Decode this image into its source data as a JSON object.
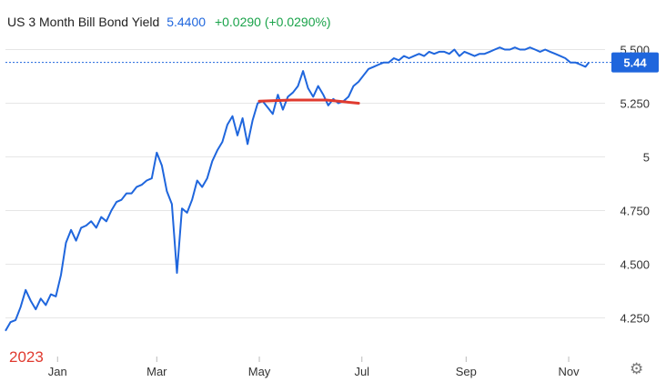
{
  "header": {
    "title": "US 3 Month Bill Bond Yield",
    "value": "5.4400",
    "change": "+0.0290 (+0.0290%)"
  },
  "year_label": "2023",
  "current_label": "5.44",
  "icons": {
    "settings": "gear-icon"
  },
  "colors": {
    "line": "#1f66dd",
    "trend": "#e03a2f",
    "up": "#1aa34a",
    "label_bg": "#1f66dd"
  },
  "chart_data": {
    "type": "line",
    "title": "US 3 Month Bill Bond Yield",
    "xlabel": "",
    "ylabel": "",
    "x_ticks": [
      "Jan",
      "Mar",
      "May",
      "Jul",
      "Sep",
      "Nov"
    ],
    "y_ticks": [
      4.25,
      4.5,
      4.75,
      5,
      5.25,
      5.5
    ],
    "y_tick_labels": [
      "4.250",
      "4.500",
      "4.750",
      "5",
      "5.250",
      "5.500"
    ],
    "ylim": [
      4.07,
      5.57
    ],
    "grid": true,
    "current_value": 5.44,
    "series": [
      {
        "x": [
          "2022-12-01",
          "2022-12-04",
          "2022-12-07",
          "2022-12-10",
          "2022-12-13",
          "2022-12-16",
          "2022-12-19",
          "2022-12-22",
          "2022-12-25",
          "2022-12-28",
          "2022-12-31",
          "2023-01-03",
          "2023-01-06",
          "2023-01-09",
          "2023-01-12",
          "2023-01-15",
          "2023-01-18",
          "2023-01-21",
          "2023-01-24",
          "2023-01-27",
          "2023-01-30",
          "2023-02-02",
          "2023-02-05",
          "2023-02-08",
          "2023-02-11",
          "2023-02-14",
          "2023-02-17",
          "2023-02-20",
          "2023-02-23",
          "2023-02-26",
          "2023-03-01",
          "2023-03-04",
          "2023-03-07",
          "2023-03-10",
          "2023-03-13",
          "2023-03-16",
          "2023-03-19",
          "2023-03-22",
          "2023-03-25",
          "2023-03-28",
          "2023-03-31",
          "2023-04-03",
          "2023-04-06",
          "2023-04-09",
          "2023-04-12",
          "2023-04-15",
          "2023-04-18",
          "2023-04-21",
          "2023-04-24",
          "2023-04-27",
          "2023-04-30",
          "2023-05-03",
          "2023-05-06",
          "2023-05-09",
          "2023-05-12",
          "2023-05-15",
          "2023-05-18",
          "2023-05-21",
          "2023-05-24",
          "2023-05-27",
          "2023-05-30",
          "2023-06-02",
          "2023-06-05",
          "2023-06-08",
          "2023-06-11",
          "2023-06-14",
          "2023-06-17",
          "2023-06-20",
          "2023-06-23",
          "2023-06-26",
          "2023-06-29",
          "2023-07-02",
          "2023-07-05",
          "2023-07-08",
          "2023-07-11",
          "2023-07-14",
          "2023-07-17",
          "2023-07-20",
          "2023-07-23",
          "2023-07-26",
          "2023-07-29",
          "2023-08-01",
          "2023-08-04",
          "2023-08-07",
          "2023-08-10",
          "2023-08-13",
          "2023-08-16",
          "2023-08-19",
          "2023-08-22",
          "2023-08-25",
          "2023-08-28",
          "2023-08-31",
          "2023-09-03",
          "2023-09-06",
          "2023-09-09",
          "2023-09-12",
          "2023-09-15",
          "2023-09-18",
          "2023-09-21",
          "2023-09-24",
          "2023-09-27",
          "2023-09-30",
          "2023-10-03",
          "2023-10-06",
          "2023-10-09",
          "2023-10-12",
          "2023-10-15",
          "2023-10-18",
          "2023-10-21",
          "2023-10-24",
          "2023-10-27",
          "2023-10-30",
          "2023-11-02",
          "2023-11-05",
          "2023-11-08",
          "2023-11-11",
          "2023-11-13"
        ],
        "y": [
          4.19,
          4.23,
          4.24,
          4.3,
          4.38,
          4.33,
          4.29,
          4.34,
          4.31,
          4.36,
          4.35,
          4.45,
          4.6,
          4.66,
          4.61,
          4.67,
          4.68,
          4.7,
          4.67,
          4.72,
          4.7,
          4.75,
          4.79,
          4.8,
          4.83,
          4.83,
          4.86,
          4.87,
          4.89,
          4.9,
          5.02,
          4.96,
          4.84,
          4.78,
          4.46,
          4.76,
          4.74,
          4.8,
          4.89,
          4.86,
          4.9,
          4.98,
          5.03,
          5.07,
          5.15,
          5.19,
          5.1,
          5.18,
          5.06,
          5.17,
          5.25,
          5.26,
          5.23,
          5.2,
          5.29,
          5.22,
          5.28,
          5.3,
          5.33,
          5.4,
          5.32,
          5.28,
          5.33,
          5.29,
          5.24,
          5.27,
          5.25,
          5.26,
          5.28,
          5.33,
          5.35,
          5.38,
          5.41,
          5.42,
          5.43,
          5.44,
          5.44,
          5.46,
          5.45,
          5.47,
          5.46,
          5.47,
          5.48,
          5.47,
          5.49,
          5.48,
          5.49,
          5.49,
          5.48,
          5.5,
          5.47,
          5.49,
          5.48,
          5.47,
          5.48,
          5.48,
          5.49,
          5.5,
          5.51,
          5.5,
          5.5,
          5.51,
          5.5,
          5.5,
          5.51,
          5.5,
          5.49,
          5.5,
          5.49,
          5.48,
          5.47,
          5.46,
          5.44,
          5.44,
          5.43,
          5.42,
          5.44
        ]
      },
      {
        "x": [
          "2023-05-01",
          "2023-05-20",
          "2023-06-10",
          "2023-06-29"
        ],
        "y": [
          5.26,
          5.265,
          5.265,
          5.25
        ]
      }
    ]
  }
}
